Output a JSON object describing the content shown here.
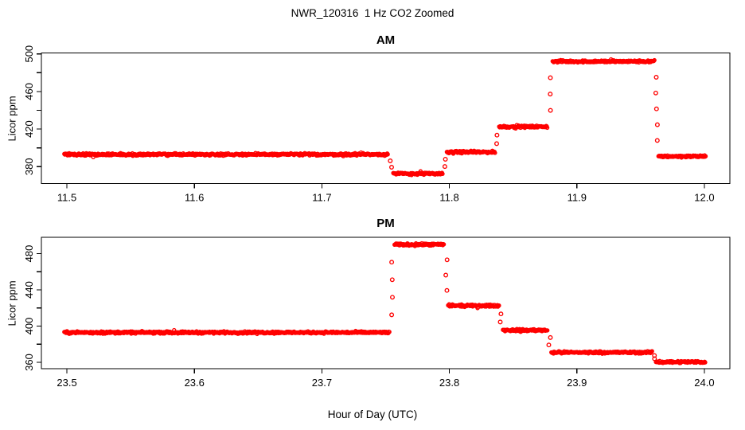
{
  "title": "NWR_120316  1 Hz CO2 Zoomed",
  "xlabel": "Hour of Day (UTC)",
  "point_color": "#ff0000",
  "axis_color": "#000000",
  "background_color": "#ffffff",
  "marker": "open-circle",
  "chart_data": [
    {
      "type": "scatter",
      "panel": "AM",
      "ylabel": "Licor ppm",
      "xlim": [
        11.48,
        12.02
      ],
      "ylim": [
        362,
        501
      ],
      "xticks": [
        11.5,
        11.6,
        11.7,
        11.8,
        11.9,
        12.0
      ],
      "yticks_labeled": [
        380,
        420,
        460,
        500
      ],
      "yticks_all": [
        380,
        400,
        420,
        440,
        460,
        480,
        500
      ],
      "grid": false,
      "legend": false,
      "segments": [
        {
          "x_start": 11.498,
          "x_end": 11.752,
          "ppm": 393.0
        },
        {
          "x_start": 11.756,
          "x_end": 11.795,
          "ppm": 372.5
        },
        {
          "x_start": 11.798,
          "x_end": 11.836,
          "ppm": 395.5
        },
        {
          "x_start": 11.839,
          "x_end": 11.877,
          "ppm": 422.5
        },
        {
          "x_start": 11.881,
          "x_end": 11.961,
          "ppm": 492.0
        },
        {
          "x_start": 11.964,
          "x_end": 12.001,
          "ppm": 391.0
        }
      ]
    },
    {
      "type": "scatter",
      "panel": "PM",
      "ylabel": "Licor ppm",
      "xlim": [
        23.48,
        24.02
      ],
      "ylim": [
        353,
        498
      ],
      "xticks": [
        23.5,
        23.6,
        23.7,
        23.8,
        23.9,
        24.0
      ],
      "yticks_labeled": [
        360,
        400,
        440,
        480
      ],
      "yticks_all": [
        360,
        380,
        400,
        420,
        440,
        460,
        480
      ],
      "grid": false,
      "legend": false,
      "segments": [
        {
          "x_start": 23.498,
          "x_end": 23.753,
          "ppm": 393.0
        },
        {
          "x_start": 23.757,
          "x_end": 23.796,
          "ppm": 490.0
        },
        {
          "x_start": 23.799,
          "x_end": 23.839,
          "ppm": 422.5
        },
        {
          "x_start": 23.842,
          "x_end": 23.877,
          "ppm": 395.5
        },
        {
          "x_start": 23.88,
          "x_end": 23.959,
          "ppm": 371.0
        },
        {
          "x_start": 23.962,
          "x_end": 24.001,
          "ppm": 360.5
        }
      ]
    }
  ]
}
